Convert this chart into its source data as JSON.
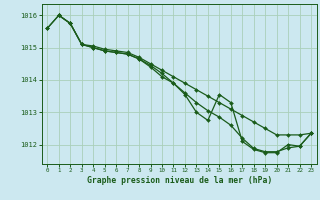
{
  "title": "Graphe pression niveau de la mer (hPa)",
  "background_color": "#cce8f0",
  "grid_color": "#aacfba",
  "line_color": "#1a5c1a",
  "xlim": [
    -0.5,
    23.5
  ],
  "ylim": [
    1011.4,
    1016.35
  ],
  "yticks": [
    1012,
    1013,
    1014,
    1015,
    1016
  ],
  "xticks": [
    0,
    1,
    2,
    3,
    4,
    5,
    6,
    7,
    8,
    9,
    10,
    11,
    12,
    13,
    14,
    15,
    16,
    17,
    18,
    19,
    20,
    21,
    22,
    23
  ],
  "series1": {
    "x": [
      0,
      1,
      2,
      3,
      4,
      5,
      6,
      7,
      8,
      9,
      10,
      11,
      12,
      13,
      14,
      15,
      16,
      17,
      18,
      19,
      20,
      21,
      22,
      23
    ],
    "y": [
      1015.6,
      1016.0,
      1015.75,
      1015.1,
      1015.0,
      1014.9,
      1014.85,
      1014.8,
      1014.65,
      1014.45,
      1014.2,
      1013.9,
      1013.6,
      1013.3,
      1013.05,
      1012.85,
      1012.6,
      1012.2,
      1011.88,
      1011.78,
      1011.78,
      1011.9,
      1011.95,
      1012.35
    ]
  },
  "series2": {
    "x": [
      0,
      1,
      2,
      3,
      4,
      5,
      6,
      7,
      8,
      9,
      10,
      11,
      12,
      13,
      14,
      15,
      16,
      17,
      18,
      19,
      20,
      21,
      22,
      23
    ],
    "y": [
      1015.6,
      1016.0,
      1015.75,
      1015.1,
      1015.05,
      1014.95,
      1014.9,
      1014.85,
      1014.7,
      1014.5,
      1014.3,
      1014.1,
      1013.9,
      1013.7,
      1013.5,
      1013.3,
      1013.1,
      1012.9,
      1012.7,
      1012.5,
      1012.3,
      1012.3,
      1012.3,
      1012.35
    ]
  },
  "series3": {
    "x": [
      1,
      2,
      3,
      4,
      5,
      6,
      7,
      8,
      9,
      10,
      11,
      12,
      13,
      14,
      15,
      16,
      17,
      18,
      19,
      20,
      21,
      22,
      23
    ],
    "y": [
      1016.0,
      1015.75,
      1015.1,
      1015.0,
      1014.9,
      1014.85,
      1014.8,
      1014.65,
      1014.4,
      1014.1,
      1013.9,
      1013.55,
      1013.0,
      1012.75,
      1013.55,
      1013.3,
      1012.1,
      1011.85,
      1011.75,
      1011.75,
      1012.0,
      1011.95,
      1012.35
    ]
  }
}
